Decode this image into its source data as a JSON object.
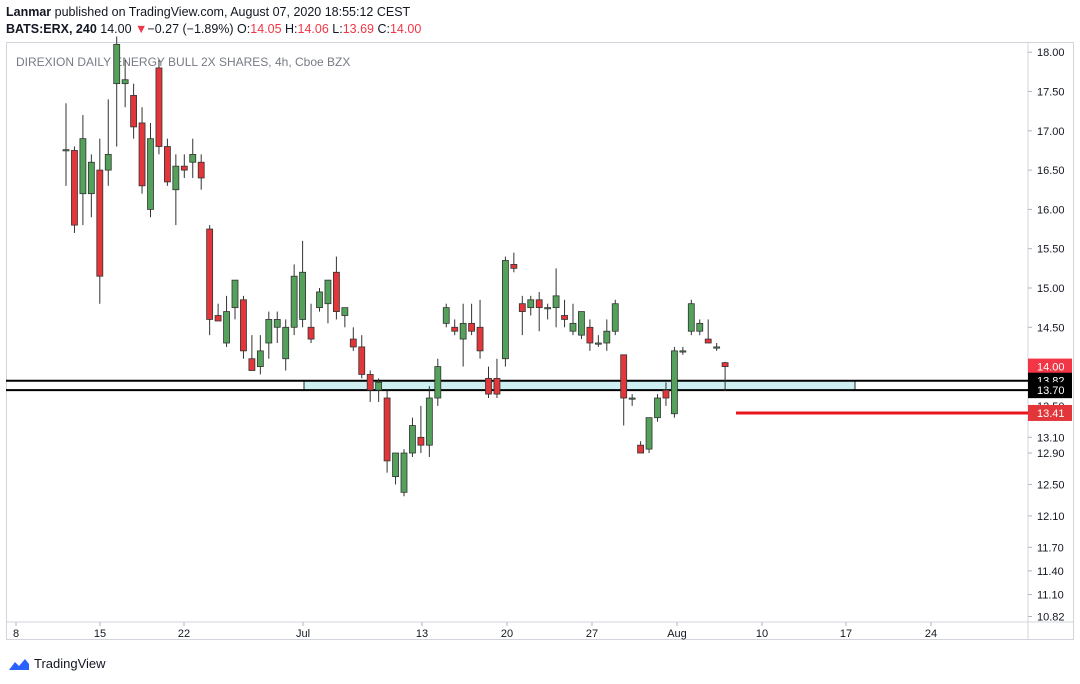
{
  "header": {
    "author": "Lanmar",
    "published_text": " published on TradingView.com, August 07, 2020 18:55:12 CEST",
    "symbol": "BATS:ERX, 240",
    "last": "14.00",
    "change_arrow": "▼",
    "change": "−0.27 (−1.89%)",
    "o_label": "O:",
    "o_value": "14.05",
    "h_label": "H:",
    "h_value": "14.06",
    "l_label": "L:",
    "l_value": "13.69",
    "c_label": "C:",
    "c_value": "14.00"
  },
  "footer": {
    "brand": "TradingView",
    "logo_icon": "tradingview-logo-icon"
  },
  "colors": {
    "up": "#53a15b",
    "down": "#e3363a",
    "zone": "#cdeff2",
    "hline": "#000000",
    "red_line": "#e8161b"
  },
  "chart_data": {
    "type": "candlestick",
    "title": "DIREXION DAILY ENERGY BULL 2X SHARES, 4h, Cboe BZX",
    "ylim": [
      10.75,
      18.13
    ],
    "y_ticks": [
      "18.00",
      "17.50",
      "17.00",
      "16.50",
      "16.00",
      "15.50",
      "15.00",
      "14.50",
      "14.00",
      "13.50",
      "13.10",
      "12.90",
      "12.50",
      "12.10",
      "11.70",
      "11.40",
      "11.10",
      "10.82"
    ],
    "x_ticks": [
      "8",
      "15",
      "22",
      "Jul",
      "13",
      "20",
      "27",
      "Aug",
      "10",
      "17",
      "24"
    ],
    "price_labels": [
      {
        "value": "14.00",
        "bg": "#f23645"
      },
      {
        "value": "13.82",
        "bg": "#000000"
      },
      {
        "value": "13.70",
        "bg": "#000000"
      },
      {
        "value": "13.41",
        "bg": "#e3363a"
      }
    ],
    "levels": {
      "zone_top": 13.82,
      "zone_bottom": 13.7,
      "red_line": 13.41
    },
    "candles": [
      {
        "o": 16.75,
        "h": 17.35,
        "l": 16.3,
        "c": 16.76
      },
      {
        "o": 16.75,
        "h": 16.8,
        "l": 15.7,
        "c": 15.8
      },
      {
        "o": 16.2,
        "h": 17.2,
        "l": 15.8,
        "c": 16.9
      },
      {
        "o": 16.2,
        "h": 16.7,
        "l": 15.9,
        "c": 16.6
      },
      {
        "o": 16.5,
        "h": 16.9,
        "l": 14.8,
        "c": 15.15
      },
      {
        "o": 16.5,
        "h": 17.4,
        "l": 16.3,
        "c": 16.7
      },
      {
        "o": 17.6,
        "h": 18.2,
        "l": 16.8,
        "c": 18.1
      },
      {
        "o": 17.6,
        "h": 17.9,
        "l": 17.3,
        "c": 17.65
      },
      {
        "o": 17.45,
        "h": 17.6,
        "l": 16.9,
        "c": 17.05
      },
      {
        "o": 17.1,
        "h": 17.3,
        "l": 16.2,
        "c": 16.3
      },
      {
        "o": 16.0,
        "h": 17.1,
        "l": 15.9,
        "c": 16.9
      },
      {
        "o": 17.8,
        "h": 17.9,
        "l": 16.7,
        "c": 16.8
      },
      {
        "o": 16.8,
        "h": 16.9,
        "l": 16.3,
        "c": 16.35
      },
      {
        "o": 16.25,
        "h": 16.7,
        "l": 15.8,
        "c": 16.55
      },
      {
        "o": 16.55,
        "h": 16.7,
        "l": 16.4,
        "c": 16.5
      },
      {
        "o": 16.6,
        "h": 16.9,
        "l": 16.4,
        "c": 16.7
      },
      {
        "o": 16.6,
        "h": 16.7,
        "l": 16.25,
        "c": 16.4
      },
      {
        "o": 15.75,
        "h": 15.8,
        "l": 14.4,
        "c": 14.6
      },
      {
        "o": 14.65,
        "h": 14.8,
        "l": 14.6,
        "c": 14.58
      },
      {
        "o": 14.3,
        "h": 14.9,
        "l": 14.25,
        "c": 14.7
      },
      {
        "o": 14.75,
        "h": 15.1,
        "l": 14.6,
        "c": 15.1
      },
      {
        "o": 14.85,
        "h": 14.9,
        "l": 14.1,
        "c": 14.2
      },
      {
        "o": 14.1,
        "h": 14.4,
        "l": 14.0,
        "c": 13.95
      },
      {
        "o": 14.0,
        "h": 14.4,
        "l": 13.9,
        "c": 14.2
      },
      {
        "o": 14.3,
        "h": 14.7,
        "l": 14.1,
        "c": 14.6
      },
      {
        "o": 14.5,
        "h": 14.7,
        "l": 14.3,
        "c": 14.6
      },
      {
        "o": 14.1,
        "h": 14.6,
        "l": 13.95,
        "c": 14.5
      },
      {
        "o": 14.5,
        "h": 15.3,
        "l": 14.4,
        "c": 15.15
      },
      {
        "o": 14.6,
        "h": 15.6,
        "l": 14.5,
        "c": 15.2
      },
      {
        "o": 14.5,
        "h": 14.8,
        "l": 14.3,
        "c": 14.35
      },
      {
        "o": 14.75,
        "h": 15.0,
        "l": 14.7,
        "c": 14.95
      },
      {
        "o": 14.8,
        "h": 15.1,
        "l": 14.55,
        "c": 15.1
      },
      {
        "o": 15.2,
        "h": 15.4,
        "l": 14.6,
        "c": 14.7
      },
      {
        "o": 14.65,
        "h": 14.75,
        "l": 14.5,
        "c": 14.75
      },
      {
        "o": 14.35,
        "h": 14.5,
        "l": 14.2,
        "c": 14.25
      },
      {
        "o": 14.25,
        "h": 14.4,
        "l": 13.85,
        "c": 13.9
      },
      {
        "o": 13.9,
        "h": 13.95,
        "l": 13.55,
        "c": 13.7
      },
      {
        "o": 13.7,
        "h": 13.85,
        "l": 13.55,
        "c": 13.8
      },
      {
        "o": 13.6,
        "h": 13.7,
        "l": 12.65,
        "c": 12.8
      },
      {
        "o": 12.6,
        "h": 12.9,
        "l": 12.5,
        "c": 12.9
      },
      {
        "o": 12.4,
        "h": 12.95,
        "l": 12.35,
        "c": 12.9
      },
      {
        "o": 12.9,
        "h": 13.35,
        "l": 12.85,
        "c": 13.25
      },
      {
        "o": 13.1,
        "h": 13.5,
        "l": 12.9,
        "c": 13.0
      },
      {
        "o": 13.0,
        "h": 13.75,
        "l": 12.85,
        "c": 13.6
      },
      {
        "o": 13.6,
        "h": 14.1,
        "l": 13.5,
        "c": 14.0
      },
      {
        "o": 14.55,
        "h": 14.8,
        "l": 14.5,
        "c": 14.75
      },
      {
        "o": 14.5,
        "h": 14.6,
        "l": 14.4,
        "c": 14.45
      },
      {
        "o": 14.35,
        "h": 14.8,
        "l": 14.0,
        "c": 14.55
      },
      {
        "o": 14.55,
        "h": 14.8,
        "l": 14.4,
        "c": 14.45
      },
      {
        "o": 14.5,
        "h": 14.85,
        "l": 14.1,
        "c": 14.2
      },
      {
        "o": 13.85,
        "h": 14.0,
        "l": 13.6,
        "c": 13.65
      },
      {
        "o": 13.85,
        "h": 14.1,
        "l": 13.6,
        "c": 13.65
      },
      {
        "o": 14.1,
        "h": 15.4,
        "l": 14.0,
        "c": 15.35
      },
      {
        "o": 15.3,
        "h": 15.45,
        "l": 15.2,
        "c": 15.25
      },
      {
        "o": 14.8,
        "h": 14.9,
        "l": 14.4,
        "c": 14.7
      },
      {
        "o": 14.75,
        "h": 14.9,
        "l": 14.65,
        "c": 14.85
      },
      {
        "o": 14.85,
        "h": 14.95,
        "l": 14.45,
        "c": 14.75
      },
      {
        "o": 14.75,
        "h": 14.8,
        "l": 14.6,
        "c": 14.75
      },
      {
        "o": 14.75,
        "h": 15.25,
        "l": 14.5,
        "c": 14.9
      },
      {
        "o": 14.65,
        "h": 14.85,
        "l": 14.5,
        "c": 14.6
      },
      {
        "o": 14.45,
        "h": 14.8,
        "l": 14.4,
        "c": 14.55
      },
      {
        "o": 14.4,
        "h": 14.7,
        "l": 14.35,
        "c": 14.7
      },
      {
        "o": 14.5,
        "h": 14.6,
        "l": 14.2,
        "c": 14.3
      },
      {
        "o": 14.3,
        "h": 14.4,
        "l": 14.25,
        "c": 14.3
      },
      {
        "o": 14.3,
        "h": 14.6,
        "l": 14.2,
        "c": 14.45
      },
      {
        "o": 14.45,
        "h": 14.85,
        "l": 14.4,
        "c": 14.8
      },
      {
        "o": 14.15,
        "h": 14.15,
        "l": 13.25,
        "c": 13.6
      },
      {
        "o": 13.6,
        "h": 13.65,
        "l": 13.5,
        "c": 13.6
      },
      {
        "o": 13.0,
        "h": 13.05,
        "l": 12.9,
        "c": 12.9
      },
      {
        "o": 12.95,
        "h": 13.35,
        "l": 12.9,
        "c": 13.35
      },
      {
        "o": 13.35,
        "h": 13.65,
        "l": 13.3,
        "c": 13.6
      },
      {
        "o": 13.7,
        "h": 13.8,
        "l": 13.5,
        "c": 13.6
      },
      {
        "o": 13.4,
        "h": 14.25,
        "l": 13.35,
        "c": 14.2
      },
      {
        "o": 14.2,
        "h": 14.25,
        "l": 14.15,
        "c": 14.2
      },
      {
        "o": 14.45,
        "h": 14.85,
        "l": 14.4,
        "c": 14.8
      },
      {
        "o": 14.45,
        "h": 14.6,
        "l": 14.4,
        "c": 14.55
      },
      {
        "o": 14.35,
        "h": 14.6,
        "l": 14.3,
        "c": 14.3
      },
      {
        "o": 14.25,
        "h": 14.3,
        "l": 14.2,
        "c": 14.25
      },
      {
        "o": 14.05,
        "h": 14.06,
        "l": 13.69,
        "c": 14.0
      }
    ]
  }
}
